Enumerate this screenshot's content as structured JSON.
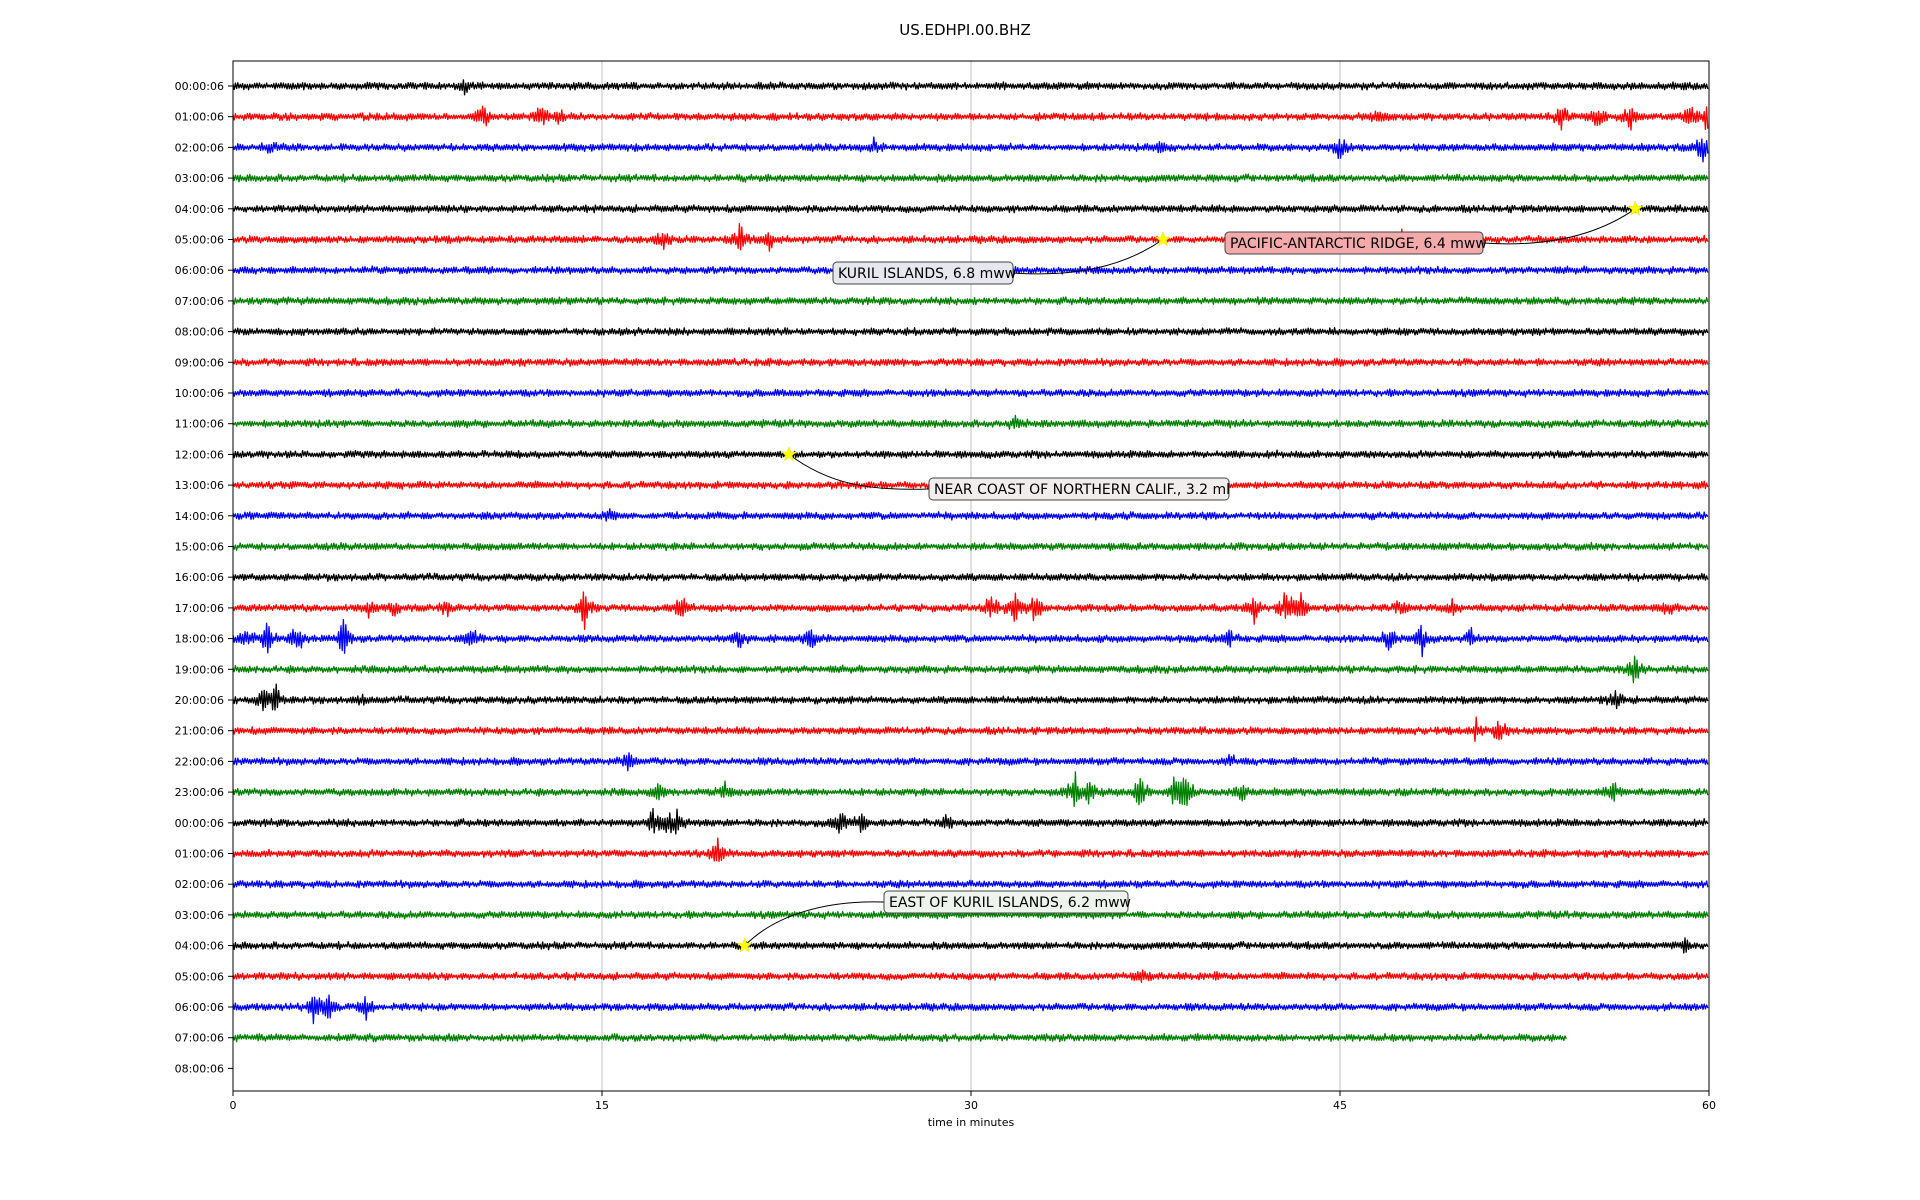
{
  "chart_data": {
    "type": "line",
    "title": "US.EDHPI.00.BHZ",
    "xlabel": "time in minutes",
    "xlim": [
      0,
      60
    ],
    "x_ticks": [
      "0",
      "15",
      "30",
      "45",
      "60"
    ],
    "x_tick_values": [
      0,
      15,
      30,
      45,
      60
    ],
    "grid": "vertical lines at x ticks",
    "row_colors": [
      "#000000",
      "#ff0000",
      "#0000ff",
      "#008000"
    ],
    "row_labels": [
      "00:00:06",
      "01:00:06",
      "02:00:06",
      "03:00:06",
      "04:00:06",
      "05:00:06",
      "06:00:06",
      "07:00:06",
      "08:00:06",
      "09:00:06",
      "10:00:06",
      "11:00:06",
      "12:00:06",
      "13:00:06",
      "14:00:06",
      "15:00:06",
      "16:00:06",
      "17:00:06",
      "18:00:06",
      "19:00:06",
      "20:00:06",
      "21:00:06",
      "22:00:06",
      "23:00:06",
      "00:00:06",
      "01:00:06",
      "02:00:06",
      "03:00:06",
      "04:00:06",
      "05:00:06",
      "06:00:06",
      "07:00:06",
      "08:00:06"
    ],
    "last_trace_row": 31,
    "last_trace_end_minute": 54.2,
    "events": [
      {
        "label": "PACIFIC-ANTARCTIC RIDGE, 6.4 mww",
        "row": 4,
        "minute": 57.0,
        "box_color": "#f4aaaa"
      },
      {
        "label": "KURIL ISLANDS, 6.8 mww",
        "row": 5,
        "minute": 37.8,
        "box_color": "#e7e7ef"
      },
      {
        "label": "NEAR COAST OF NORTHERN CALIF., 3.2 ml",
        "row": 12,
        "minute": 22.6,
        "box_color": "#f2eded"
      },
      {
        "label": "EAST OF KURIL ISLANDS, 6.2 mww",
        "row": 28,
        "minute": 20.8,
        "box_color": "#eef3ee"
      }
    ],
    "bursts": [
      {
        "row": 0,
        "minute": 9.4,
        "amp": 0.4
      },
      {
        "row": 1,
        "minute": 10.2,
        "amp": 0.7
      },
      {
        "row": 1,
        "minute": 12.5,
        "amp": 0.6
      },
      {
        "row": 1,
        "minute": 13.2,
        "amp": 0.5
      },
      {
        "row": 1,
        "minute": 46.5,
        "amp": 0.4
      },
      {
        "row": 1,
        "minute": 54.0,
        "amp": 0.9
      },
      {
        "row": 1,
        "minute": 55.5,
        "amp": 0.6
      },
      {
        "row": 1,
        "minute": 56.8,
        "amp": 1.0
      },
      {
        "row": 1,
        "minute": 59.2,
        "amp": 0.8
      },
      {
        "row": 1,
        "minute": 59.9,
        "amp": 0.7
      },
      {
        "row": 2,
        "minute": 1.5,
        "amp": 0.3
      },
      {
        "row": 2,
        "minute": 26.0,
        "amp": 0.4
      },
      {
        "row": 2,
        "minute": 37.8,
        "amp": 0.4
      },
      {
        "row": 2,
        "minute": 45.0,
        "amp": 0.6
      },
      {
        "row": 2,
        "minute": 59.7,
        "amp": 0.9
      },
      {
        "row": 5,
        "minute": 17.5,
        "amp": 0.6
      },
      {
        "row": 5,
        "minute": 20.6,
        "amp": 0.9
      },
      {
        "row": 5,
        "minute": 21.8,
        "amp": 0.5
      },
      {
        "row": 5,
        "minute": 47.5,
        "amp": 0.8
      },
      {
        "row": 11,
        "minute": 31.8,
        "amp": 0.3
      },
      {
        "row": 14,
        "minute": 15.3,
        "amp": 0.3
      },
      {
        "row": 17,
        "minute": 5.5,
        "amp": 0.4
      },
      {
        "row": 17,
        "minute": 6.5,
        "amp": 0.5
      },
      {
        "row": 17,
        "minute": 8.7,
        "amp": 0.5
      },
      {
        "row": 17,
        "minute": 14.3,
        "amp": 1.0
      },
      {
        "row": 17,
        "minute": 18.2,
        "amp": 0.7
      },
      {
        "row": 17,
        "minute": 30.8,
        "amp": 0.8
      },
      {
        "row": 17,
        "minute": 31.8,
        "amp": 1.0
      },
      {
        "row": 17,
        "minute": 32.6,
        "amp": 0.7
      },
      {
        "row": 17,
        "minute": 41.5,
        "amp": 0.7
      },
      {
        "row": 17,
        "minute": 42.8,
        "amp": 1.2
      },
      {
        "row": 17,
        "minute": 43.4,
        "amp": 0.8
      },
      {
        "row": 17,
        "minute": 47.5,
        "amp": 0.4
      },
      {
        "row": 17,
        "minute": 49.6,
        "amp": 0.4
      },
      {
        "row": 17,
        "minute": 58.3,
        "amp": 0.4
      },
      {
        "row": 18,
        "minute": 0.6,
        "amp": 0.6
      },
      {
        "row": 18,
        "minute": 1.4,
        "amp": 0.9
      },
      {
        "row": 18,
        "minute": 2.6,
        "amp": 0.8
      },
      {
        "row": 18,
        "minute": 4.5,
        "amp": 0.9
      },
      {
        "row": 18,
        "minute": 9.7,
        "amp": 0.7
      },
      {
        "row": 18,
        "minute": 20.6,
        "amp": 0.6
      },
      {
        "row": 18,
        "minute": 23.5,
        "amp": 0.6
      },
      {
        "row": 18,
        "minute": 40.5,
        "amp": 0.5
      },
      {
        "row": 18,
        "minute": 47.0,
        "amp": 0.7
      },
      {
        "row": 18,
        "minute": 48.3,
        "amp": 0.9
      },
      {
        "row": 18,
        "minute": 50.3,
        "amp": 0.5
      },
      {
        "row": 19,
        "minute": 57.0,
        "amp": 0.8
      },
      {
        "row": 20,
        "minute": 1.2,
        "amp": 0.6
      },
      {
        "row": 20,
        "minute": 1.7,
        "amp": 0.9
      },
      {
        "row": 20,
        "minute": 5.3,
        "amp": 0.3
      },
      {
        "row": 20,
        "minute": 56.2,
        "amp": 0.5
      },
      {
        "row": 21,
        "minute": 50.5,
        "amp": 0.6
      },
      {
        "row": 21,
        "minute": 51.5,
        "amp": 0.7
      },
      {
        "row": 22,
        "minute": 16.0,
        "amp": 0.6
      },
      {
        "row": 22,
        "minute": 40.5,
        "amp": 0.3
      },
      {
        "row": 23,
        "minute": 17.3,
        "amp": 0.5
      },
      {
        "row": 23,
        "minute": 20.0,
        "amp": 0.4
      },
      {
        "row": 23,
        "minute": 34.2,
        "amp": 1.2
      },
      {
        "row": 23,
        "minute": 34.8,
        "amp": 0.8
      },
      {
        "row": 23,
        "minute": 36.9,
        "amp": 1.3
      },
      {
        "row": 23,
        "minute": 38.3,
        "amp": 1.0
      },
      {
        "row": 23,
        "minute": 38.7,
        "amp": 1.2
      },
      {
        "row": 23,
        "minute": 41.0,
        "amp": 0.5
      },
      {
        "row": 23,
        "minute": 56.1,
        "amp": 0.5
      },
      {
        "row": 24,
        "minute": 17.1,
        "amp": 0.7
      },
      {
        "row": 24,
        "minute": 17.7,
        "amp": 0.6
      },
      {
        "row": 24,
        "minute": 18.1,
        "amp": 0.8
      },
      {
        "row": 24,
        "minute": 24.7,
        "amp": 0.6
      },
      {
        "row": 24,
        "minute": 25.5,
        "amp": 0.5
      },
      {
        "row": 24,
        "minute": 29.0,
        "amp": 0.3
      },
      {
        "row": 25,
        "minute": 19.7,
        "amp": 0.8
      },
      {
        "row": 28,
        "minute": 59.0,
        "amp": 0.4
      },
      {
        "row": 29,
        "minute": 36.9,
        "amp": 0.4
      },
      {
        "row": 29,
        "minute": 40.0,
        "amp": 0.3
      },
      {
        "row": 30,
        "minute": 3.3,
        "amp": 0.9
      },
      {
        "row": 30,
        "minute": 3.9,
        "amp": 0.7
      },
      {
        "row": 30,
        "minute": 5.4,
        "amp": 0.5
      }
    ]
  }
}
